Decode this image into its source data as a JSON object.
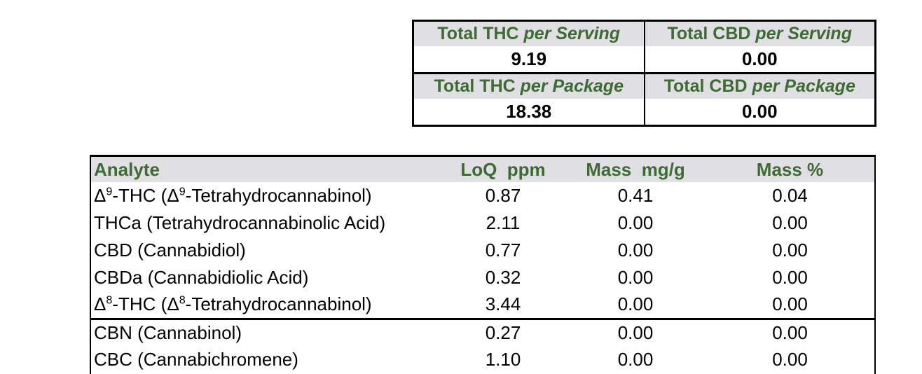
{
  "colors": {
    "accent_green": "#3e6a33",
    "header_bg": "#e0e0e4",
    "border": "#000000"
  },
  "totals_table": {
    "cells": [
      {
        "title": "Total THC ",
        "qualifier": "per Serving",
        "value": "9.19"
      },
      {
        "title": "Total CBD ",
        "qualifier": "per Serving",
        "value": "0.00"
      },
      {
        "title": "Total THC ",
        "qualifier": "per Package",
        "value": "18.38"
      },
      {
        "title": "Total CBD ",
        "qualifier": "per Package",
        "value": "0.00"
      }
    ]
  },
  "analyte_table": {
    "headers": {
      "analyte": "Analyte",
      "loq": "LoQ  ppm",
      "mass_mgg": "Mass  mg/g",
      "mass_pct": "Mass %"
    },
    "rows": [
      {
        "name_parts": [
          {
            "text": "Δ"
          },
          {
            "text": "9",
            "sup": true
          },
          {
            "text": "-THC (Δ"
          },
          {
            "text": "9",
            "sup": true
          },
          {
            "text": "-Tetrahydrocannabinol)"
          }
        ],
        "loq_ppm": "0.87",
        "mass_mg_g": "0.41",
        "mass_pct": "0.04",
        "group_end": false
      },
      {
        "name_parts": [
          {
            "text": "THCa (Tetrahydrocannabinolic Acid)"
          }
        ],
        "loq_ppm": "2.11",
        "mass_mg_g": "0.00",
        "mass_pct": "0.00",
        "group_end": false
      },
      {
        "name_parts": [
          {
            "text": "CBD (Cannabidiol)"
          }
        ],
        "loq_ppm": "0.77",
        "mass_mg_g": "0.00",
        "mass_pct": "0.00",
        "group_end": false
      },
      {
        "name_parts": [
          {
            "text": "CBDa (Cannabidiolic Acid)"
          }
        ],
        "loq_ppm": "0.32",
        "mass_mg_g": "0.00",
        "mass_pct": "0.00",
        "group_end": false
      },
      {
        "name_parts": [
          {
            "text": "Δ"
          },
          {
            "text": "8",
            "sup": true
          },
          {
            "text": "-THC (Δ"
          },
          {
            "text": "8",
            "sup": true
          },
          {
            "text": "-Tetrahydrocannabinol)"
          }
        ],
        "loq_ppm": "3.44",
        "mass_mg_g": "0.00",
        "mass_pct": "0.00",
        "group_end": true
      },
      {
        "name_parts": [
          {
            "text": "CBN (Cannabinol)"
          }
        ],
        "loq_ppm": "0.27",
        "mass_mg_g": "0.00",
        "mass_pct": "0.00",
        "group_end": false
      },
      {
        "name_parts": [
          {
            "text": "CBC (Cannabichromene)"
          }
        ],
        "loq_ppm": "1.10",
        "mass_mg_g": "0.00",
        "mass_pct": "0.00",
        "group_end": false
      }
    ]
  }
}
